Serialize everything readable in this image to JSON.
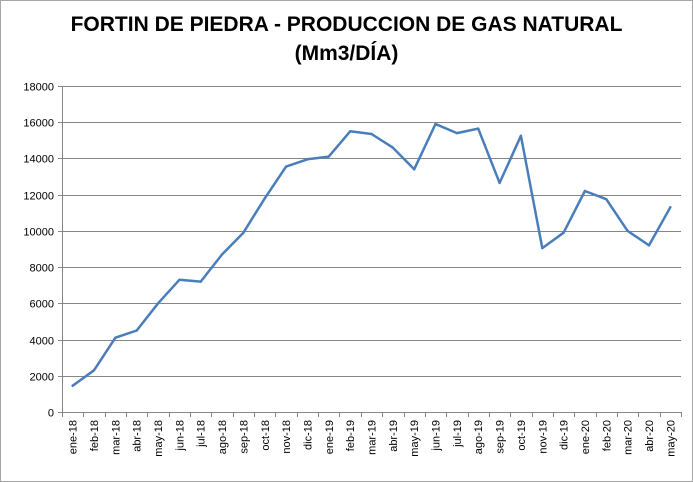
{
  "chart_data": {
    "type": "line",
    "title_line1": "FORTIN DE PIEDRA - PRODUCCION DE GAS NATURAL",
    "title_line2": "(Mm3/DÍA)",
    "xlabel": "",
    "ylabel": "",
    "ylim": [
      0,
      18000
    ],
    "yticks": [
      0,
      2000,
      4000,
      6000,
      8000,
      10000,
      12000,
      14000,
      16000,
      18000
    ],
    "grid": true,
    "legend": "none",
    "line_color": "#4a7ebb",
    "categories": [
      "ene-18",
      "feb-18",
      "mar-18",
      "abr-18",
      "may-18",
      "jun-18",
      "jul-18",
      "ago-18",
      "sep-18",
      "oct-18",
      "nov-18",
      "dic-18",
      "ene-19",
      "feb-19",
      "mar-19",
      "abr-19",
      "may-19",
      "jun-19",
      "jul-19",
      "ago-19",
      "sep-19",
      "oct-19",
      "nov-19",
      "dic-19",
      "ene-20",
      "feb-20",
      "mar-20",
      "abr-20",
      "may-20"
    ],
    "values": [
      1450,
      2300,
      4100,
      4500,
      6000,
      7300,
      7200,
      8700,
      9900,
      11800,
      13550,
      13950,
      14100,
      15500,
      15350,
      14600,
      13400,
      15900,
      15400,
      15650,
      12650,
      15250,
      9050,
      9900,
      12200,
      11750,
      10000,
      9200,
      11300
    ]
  }
}
